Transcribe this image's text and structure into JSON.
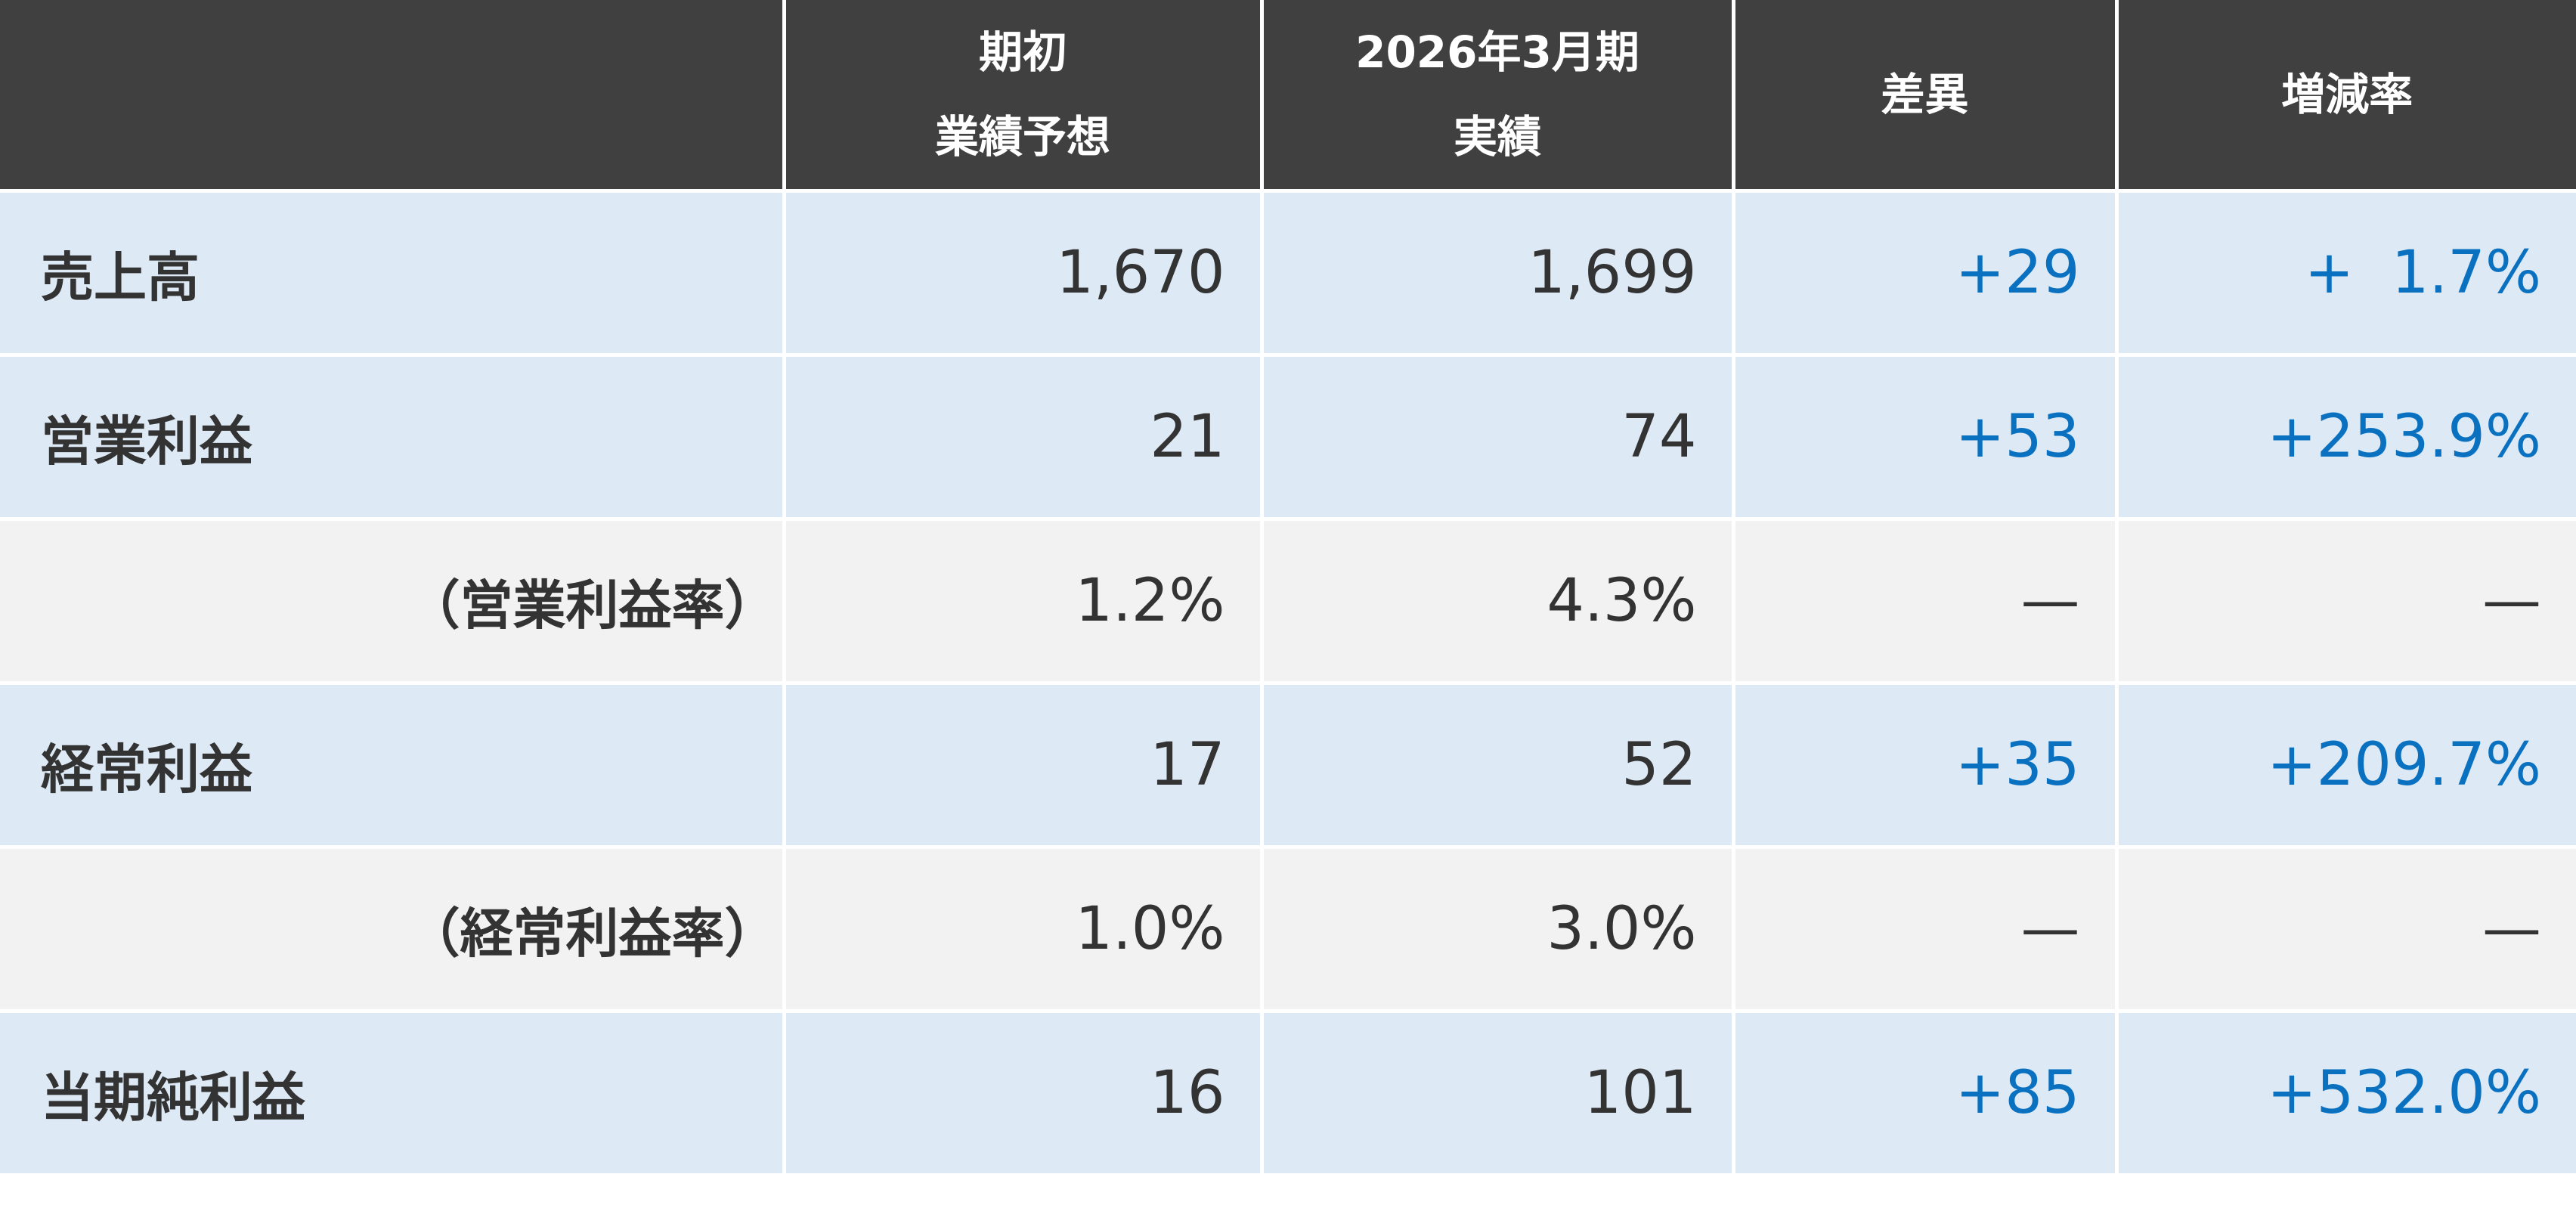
{
  "table": {
    "header": [
      [
        "期初",
        "業績予想"
      ],
      [
        "2026年3月期",
        "実績"
      ],
      [
        "差異"
      ],
      [
        "増減率"
      ]
    ],
    "rows": [
      [
        "売上高",
        "1,670",
        "1,699",
        "+29",
        "+  1.7%"
      ],
      [
        "営業利益",
        "21",
        "74",
        "+53",
        "+253.9%"
      ],
      [
        "（営業利益率）",
        "1.2%",
        "4.3%",
        "—",
        "—"
      ],
      [
        "経常利益",
        "17",
        "52",
        "+35",
        "+209.7%"
      ],
      [
        "（経常利益率）",
        "1.0%",
        "3.0%",
        "—",
        "—"
      ],
      [
        "当期純利益",
        "16",
        "101",
        "+85",
        "+532.0%"
      ]
    ]
  }
}
